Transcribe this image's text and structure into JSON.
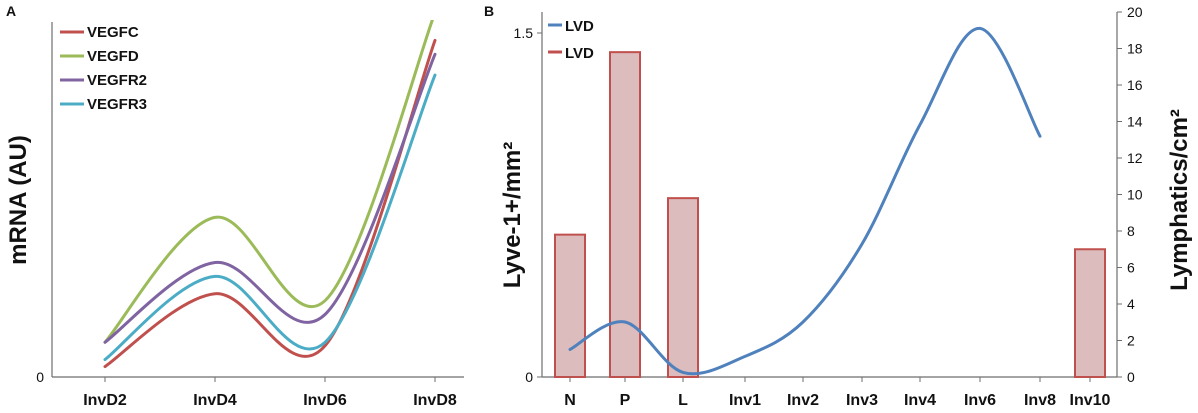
{
  "chart_data": [
    {
      "panel_label": "A",
      "type": "line",
      "title": "",
      "xlabel": "",
      "ylabel": "mRNA (AU)",
      "categories": [
        "InvD2",
        "InvD4",
        "InvD6",
        "InvD8"
      ],
      "y_tick_labels": [
        "0"
      ],
      "ylim": [
        0,
        1
      ],
      "legend_position": "top-left",
      "grid": false,
      "series": [
        {
          "name": "VEGFC",
          "color": "#c0504d",
          "values": [
            0.03,
            0.24,
            0.09,
            0.97
          ]
        },
        {
          "name": "VEGFD",
          "color": "#9bbb59",
          "values": [
            0.1,
            0.46,
            0.22,
            1.05
          ]
        },
        {
          "name": "VEGFR2",
          "color": "#8064a2",
          "values": [
            0.1,
            0.33,
            0.18,
            0.93
          ]
        },
        {
          "name": "VEGFR3",
          "color": "#4bacc6",
          "values": [
            0.05,
            0.29,
            0.1,
            0.87
          ]
        }
      ]
    },
    {
      "panel_label": "B",
      "type": "bar+line",
      "title": "",
      "xlabel": "",
      "ylabel": "Lyve-1+/mm²",
      "y2label": "Lymphatics/cm²",
      "categories": [
        "N",
        "P",
        "L",
        "Inv1",
        "Inv2",
        "Inv3",
        "Inv4",
        "Inv6",
        "Inv8",
        "Inv10"
      ],
      "y_tick_labels": [
        "0",
        "1.5"
      ],
      "ylim": [
        0,
        1.5
      ],
      "y2_tick_labels": [
        "0",
        "2",
        "4",
        "6",
        "8",
        "10",
        "12",
        "14",
        "16",
        "18",
        "20"
      ],
      "y2lim": [
        0,
        20
      ],
      "legend_position": "top-left",
      "grid": false,
      "bars": {
        "name": "LVD",
        "axis": "right",
        "fill": "#dcbcbc",
        "stroke": "#c0504d",
        "values": [
          7.8,
          17.8,
          9.8,
          null,
          null,
          null,
          null,
          null,
          null,
          7.0
        ]
      },
      "line": {
        "name": "LVD",
        "axis": "left",
        "color": "#4f81bd",
        "x": [
          "N",
          "P",
          "L",
          "Inv1",
          "Inv2",
          "Inv3",
          "Inv4",
          "Inv6",
          "Inv8"
        ],
        "values": [
          0.12,
          0.24,
          0.02,
          0.09,
          0.24,
          0.58,
          1.1,
          1.52,
          1.05
        ]
      }
    }
  ]
}
